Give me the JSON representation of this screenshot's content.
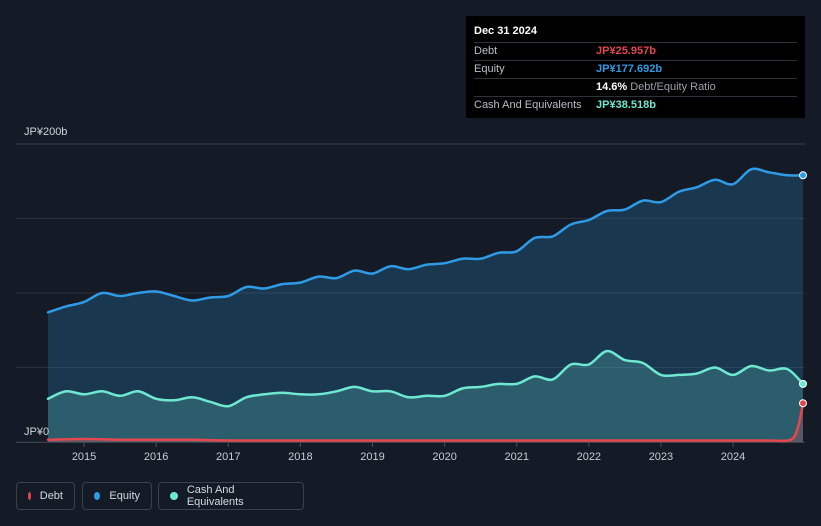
{
  "tooltip": {
    "date": "Dec 31 2024",
    "rows": [
      {
        "label": "Debt",
        "value": "JP¥25.957b",
        "color": "#e5474f"
      },
      {
        "label": "Equity",
        "value": "JP¥177.692b",
        "color": "#2f9be7"
      },
      {
        "label": "",
        "value": "14.6%",
        "suffix": "Debt/Equity Ratio",
        "color": "#ffffff"
      },
      {
        "label": "Cash And Equivalents",
        "value": "JP¥38.518b",
        "color": "#6fe8d1"
      }
    ]
  },
  "legend": [
    {
      "label": "Debt",
      "color": "#e5474f"
    },
    {
      "label": "Equity",
      "color": "#2f9be7"
    },
    {
      "label": "Cash And Equivalents",
      "color": "#6fe8d1"
    }
  ],
  "chart_data": {
    "type": "area",
    "ylim": [
      0,
      200
    ],
    "y_tick_labels": [
      "JP¥200b",
      "JP¥0"
    ],
    "x_ticks": [
      2015,
      2016,
      2017,
      2018,
      2019,
      2020,
      2021,
      2022,
      2023,
      2024
    ],
    "xlim": [
      2014.5,
      2025.0
    ],
    "grid": true,
    "series": [
      {
        "name": "Equity",
        "color": "#2f9be7",
        "x": [
          2014.5,
          2014.75,
          2015.0,
          2015.25,
          2015.5,
          2015.75,
          2016.0,
          2016.25,
          2016.5,
          2016.75,
          2017.0,
          2017.25,
          2017.5,
          2017.75,
          2018.0,
          2018.25,
          2018.5,
          2018.75,
          2019.0,
          2019.25,
          2019.5,
          2019.75,
          2020.0,
          2020.25,
          2020.5,
          2020.75,
          2021.0,
          2021.25,
          2021.5,
          2021.75,
          2022.0,
          2022.25,
          2022.5,
          2022.75,
          2023.0,
          2023.25,
          2023.5,
          2023.75,
          2024.0,
          2024.25,
          2024.5,
          2024.75,
          2024.97
        ],
        "values": [
          87,
          91,
          94,
          100,
          98,
          100,
          101,
          98,
          95,
          97,
          98,
          104,
          103,
          106,
          107,
          111,
          110,
          115,
          113,
          118,
          116,
          119,
          120,
          123,
          123,
          127,
          128,
          137,
          138,
          146,
          149,
          155,
          156,
          162,
          161,
          168,
          171,
          176,
          173,
          183,
          181,
          179,
          179
        ]
      },
      {
        "name": "Cash And Equivalents",
        "color": "#6fe8d1",
        "x": [
          2014.5,
          2014.75,
          2015.0,
          2015.25,
          2015.5,
          2015.75,
          2016.0,
          2016.25,
          2016.5,
          2016.75,
          2017.0,
          2017.25,
          2017.5,
          2017.75,
          2018.0,
          2018.25,
          2018.5,
          2018.75,
          2019.0,
          2019.25,
          2019.5,
          2019.75,
          2020.0,
          2020.25,
          2020.5,
          2020.75,
          2021.0,
          2021.25,
          2021.5,
          2021.75,
          2022.0,
          2022.25,
          2022.5,
          2022.75,
          2023.0,
          2023.25,
          2023.5,
          2023.75,
          2024.0,
          2024.25,
          2024.5,
          2024.75,
          2024.97
        ],
        "values": [
          29,
          34,
          32,
          34,
          31,
          34,
          29,
          28,
          30,
          27,
          24,
          30,
          32,
          33,
          32,
          32,
          34,
          37,
          34,
          34,
          30,
          31,
          31,
          36,
          37,
          39,
          39,
          44,
          42,
          52,
          52,
          61,
          55,
          53,
          45,
          45,
          46,
          50,
          45,
          51,
          48,
          49,
          39
        ]
      },
      {
        "name": "Debt",
        "color": "#e5474f",
        "x": [
          2014.5,
          2015.0,
          2015.5,
          2016.0,
          2016.5,
          2017.0,
          2017.5,
          2018.0,
          2018.5,
          2019.0,
          2019.5,
          2020.0,
          2020.5,
          2021.0,
          2021.5,
          2022.0,
          2022.5,
          2023.0,
          2023.5,
          2024.0,
          2024.5,
          2024.8,
          2024.9,
          2024.97
        ],
        "values": [
          1.5,
          2,
          1.5,
          1.5,
          1.5,
          1,
          1,
          1,
          1,
          1,
          1,
          1,
          1,
          1,
          1,
          1,
          1,
          1,
          1,
          1,
          1,
          1.5,
          10,
          26
        ]
      }
    ]
  }
}
